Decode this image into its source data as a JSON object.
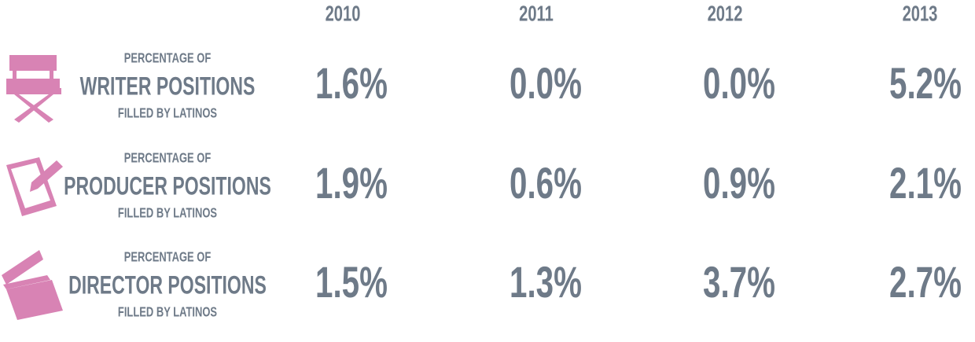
{
  "table": {
    "columns": [
      "2010",
      "2011",
      "2012",
      "2013"
    ],
    "rows": [
      {
        "prefix": "PERCENTAGE OF",
        "label": "WRITER POSITIONS",
        "suffix": "FILLED BY LATINOS",
        "values": [
          "1.6%",
          "0.0%",
          "0.0%",
          "5.2%"
        ]
      },
      {
        "prefix": "PERCENTAGE OF",
        "label": "PRODUCER POSITIONS",
        "suffix": "FILLED BY LATINOS",
        "values": [
          "1.9%",
          "0.6%",
          "0.9%",
          "2.1%"
        ]
      },
      {
        "prefix": "PERCENTAGE OF",
        "label": "DIRECTOR POSITIONS",
        "suffix": "FILLED BY LATINOS",
        "values": [
          "1.5%",
          "1.3%",
          "3.7%",
          "2.7%"
        ]
      }
    ]
  }
}
